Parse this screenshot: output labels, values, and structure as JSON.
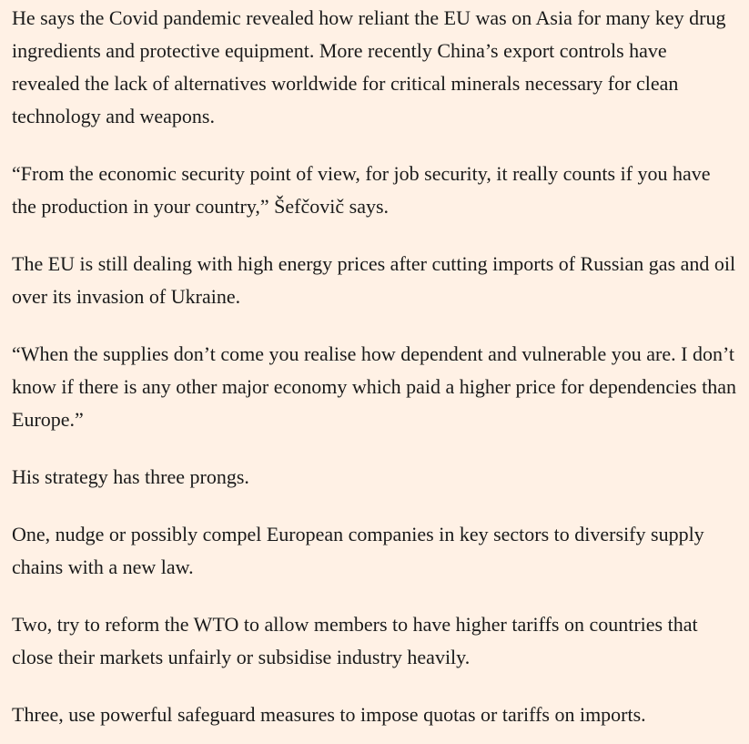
{
  "paragraphs": [
    "He says the Covid pandemic revealed how reliant the EU was on Asia for many key drug ingredients and protective equipment. More recently China’s export controls have revealed the lack of alternatives worldwide for critical minerals necessary for clean technology and weapons.",
    "“From the economic security point of view, for job security, it really counts if you have the production in your country,” Šefčovič says.",
    "The EU is still dealing with high energy prices after cutting imports of Russian gas and oil over its invasion of Ukraine.",
    "“When the supplies don’t come you realise how dependent and vulnerable you are. I don’t know if there is any other major economy which paid a higher price for dependencies than Europe.”",
    "His strategy has three prongs.",
    "One, nudge or possibly compel European companies in key sectors to diversify supply chains with a new law.",
    "Two, try to reform the WTO to allow members to have higher tariffs on countries that close their markets unfairly or subsidise industry heavily.",
    "Three, use powerful safeguard measures to impose quotas or tariffs on imports."
  ]
}
